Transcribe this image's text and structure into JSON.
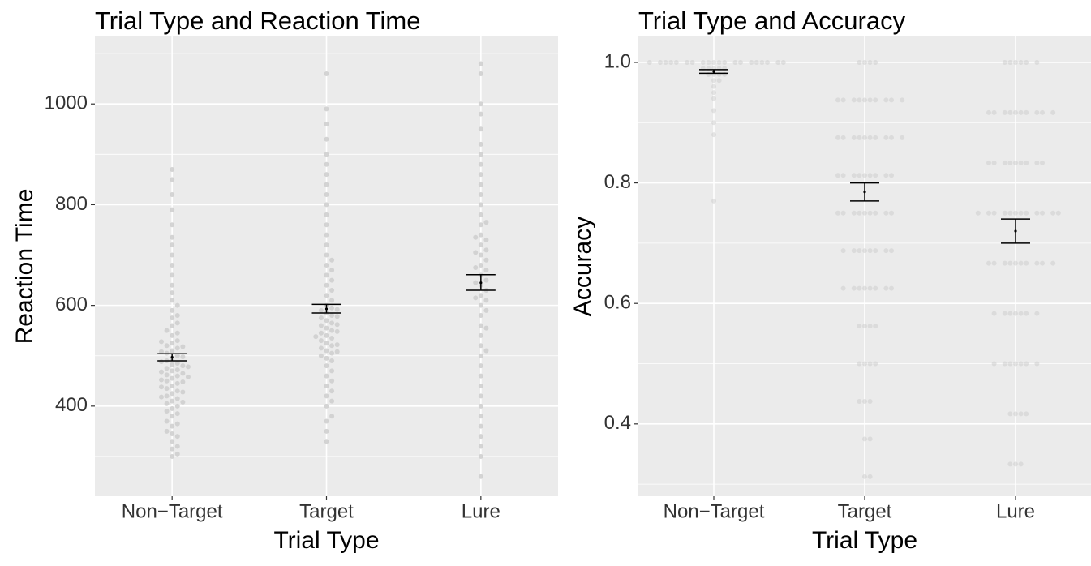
{
  "chart_data": [
    {
      "type": "swarm",
      "title": "Trial Type and Reaction Time",
      "xlabel": "Trial Type",
      "ylabel": "Reaction Time",
      "categories": [
        "Non−Target",
        "Target",
        "Lure"
      ],
      "ylim": [
        221,
        1134
      ],
      "yticks": [
        400,
        600,
        800,
        1000
      ],
      "yminor": [
        300,
        500,
        700,
        900,
        1100
      ],
      "grid": true,
      "point_color": "#cfcfcf",
      "point_opacity": 0.9,
      "errorbar_color": "#000000",
      "points": [
        [
          300,
          305,
          315,
          320,
          330,
          340,
          345,
          350,
          360,
          365,
          370,
          380,
          385,
          390,
          395,
          400,
          405,
          410,
          415,
          420,
          425,
          430,
          435,
          440,
          445,
          450,
          455,
          460,
          462,
          465,
          470,
          472,
          475,
          480,
          482,
          485,
          490,
          495,
          500,
          505,
          510,
          515,
          520,
          525,
          530,
          540,
          545,
          550,
          560,
          565,
          575,
          580,
          590,
          600,
          610,
          625,
          640,
          660,
          680,
          700,
          720,
          735,
          760,
          790,
          820,
          850,
          870,
          448,
          452,
          458,
          468,
          478,
          488,
          498,
          508,
          518,
          528,
          438,
          428,
          418,
          408
        ],
        [
          330,
          350,
          370,
          380,
          400,
          410,
          420,
          430,
          440,
          450,
          460,
          470,
          480,
          490,
          495,
          500,
          505,
          510,
          515,
          520,
          525,
          530,
          535,
          540,
          545,
          550,
          555,
          560,
          565,
          570,
          575,
          580,
          585,
          590,
          595,
          600,
          610,
          620,
          630,
          640,
          650,
          660,
          670,
          680,
          690,
          700,
          720,
          740,
          760,
          780,
          800,
          820,
          840,
          860,
          880,
          900,
          930,
          960,
          990,
          1060,
          522,
          548,
          562,
          578,
          592,
          508,
          538
        ],
        [
          260,
          300,
          320,
          340,
          360,
          380,
          400,
          420,
          440,
          460,
          480,
          500,
          510,
          520,
          540,
          560,
          580,
          600,
          610,
          620,
          630,
          640,
          650,
          660,
          670,
          680,
          690,
          700,
          710,
          720,
          730,
          740,
          760,
          780,
          800,
          820,
          840,
          860,
          880,
          900,
          920,
          950,
          980,
          1000,
          1060,
          1080,
          590,
          615,
          645,
          675,
          705,
          735,
          555,
          765
        ]
      ],
      "errorbars": {
        "mean": [
          497,
          593,
          645
        ],
        "lower": [
          490,
          585,
          630
        ],
        "upper": [
          504,
          602,
          661
        ]
      }
    },
    {
      "type": "swarm",
      "title": "Trial Type and Accuracy",
      "xlabel": "Trial Type",
      "ylabel": "Accuracy",
      "categories": [
        "Non−Target",
        "Target",
        "Lure"
      ],
      "ylim": [
        0.28,
        1.043
      ],
      "yticks": [
        {
          "value": 0.4,
          "label": "0.4"
        },
        {
          "value": 0.6,
          "label": "0.6"
        },
        {
          "value": 0.8,
          "label": "0.8"
        },
        {
          "value": 1.0,
          "label": "1.0"
        }
      ],
      "yminor": [
        0.3,
        0.5,
        0.7,
        0.9
      ],
      "grid": true,
      "point_color": "#c8c8c8",
      "point_opacity": 0.45,
      "errorbar_color": "#000000",
      "points": [
        [
          1,
          1,
          1,
          1,
          1,
          1,
          1,
          1,
          1,
          1,
          1,
          1,
          1,
          1,
          1,
          1,
          1,
          1,
          1,
          1,
          0.99,
          0.99,
          0.99,
          0.99,
          0.99,
          0.98,
          0.98,
          0.98,
          0.98,
          0.97,
          0.97,
          0.96,
          0.95,
          0.94,
          0.92,
          0.9,
          0.88,
          0.77
        ],
        [
          1,
          1,
          1,
          1,
          0.9375,
          0.9375,
          0.9375,
          0.9375,
          0.9375,
          0.9375,
          0.9375,
          0.9375,
          0.9375,
          0.9375,
          0.875,
          0.875,
          0.875,
          0.875,
          0.875,
          0.875,
          0.875,
          0.875,
          0.875,
          0.875,
          0.8125,
          0.8125,
          0.8125,
          0.8125,
          0.8125,
          0.8125,
          0.8125,
          0.8125,
          0.8125,
          0.75,
          0.75,
          0.75,
          0.75,
          0.75,
          0.75,
          0.75,
          0.75,
          0.75,
          0.6875,
          0.6875,
          0.6875,
          0.6875,
          0.6875,
          0.6875,
          0.6875,
          0.6875,
          0.625,
          0.625,
          0.625,
          0.625,
          0.625,
          0.625,
          0.625,
          0.625,
          0.5625,
          0.5625,
          0.5625,
          0.5625,
          0.5,
          0.5,
          0.5,
          0.5,
          0.4375,
          0.4375,
          0.4375,
          0.375,
          0.375,
          0.3125,
          0.3125
        ],
        [
          1,
          1,
          1,
          1,
          1,
          1,
          0.9167,
          0.9167,
          0.9167,
          0.9167,
          0.9167,
          0.9167,
          0.9167,
          0.9167,
          0.9167,
          0.9167,
          0.8333,
          0.8333,
          0.8333,
          0.8333,
          0.8333,
          0.8333,
          0.8333,
          0.8333,
          0.8333,
          0.75,
          0.75,
          0.75,
          0.75,
          0.75,
          0.75,
          0.75,
          0.75,
          0.75,
          0.75,
          0.75,
          0.75,
          0.6667,
          0.6667,
          0.6667,
          0.6667,
          0.6667,
          0.6667,
          0.6667,
          0.6667,
          0.6667,
          0.6667,
          0.5833,
          0.5833,
          0.5833,
          0.5833,
          0.5833,
          0.5833,
          0.5833,
          0.5,
          0.5,
          0.5,
          0.5,
          0.5,
          0.5,
          0.5,
          0.4167,
          0.4167,
          0.4167,
          0.4167,
          0.3333,
          0.3333,
          0.3333
        ]
      ],
      "errorbars": {
        "mean": [
          0.985,
          0.785,
          0.72
        ],
        "lower": [
          0.982,
          0.77,
          0.7
        ],
        "upper": [
          0.988,
          0.8,
          0.74
        ]
      }
    }
  ]
}
